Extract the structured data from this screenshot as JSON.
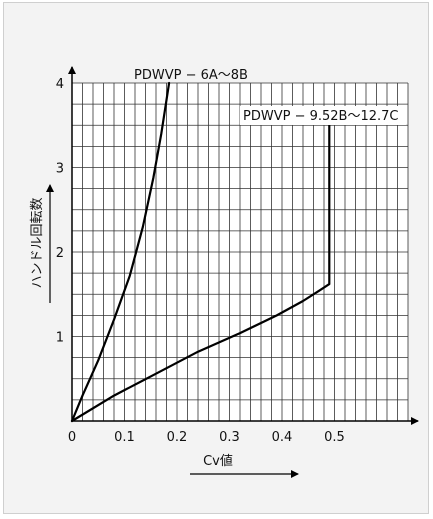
{
  "chart_data": {
    "type": "line",
    "xlabel": "Cv値",
    "ylabel": "ハンドル回転数",
    "xlim": [
      0,
      0.64
    ],
    "ylim": [
      0,
      4
    ],
    "x_ticks": [
      "0",
      "0.1",
      "0.2",
      "0.3",
      "0.4",
      "0.5"
    ],
    "y_ticks": [
      "1",
      "2",
      "3",
      "4"
    ],
    "grid": true,
    "series": [
      {
        "name": "PDWVP − 6A〜8B",
        "points": [
          [
            0,
            0
          ],
          [
            0.02,
            0.3
          ],
          [
            0.05,
            0.72
          ],
          [
            0.08,
            1.2
          ],
          [
            0.11,
            1.72
          ],
          [
            0.135,
            2.3
          ],
          [
            0.155,
            2.88
          ],
          [
            0.17,
            3.4
          ],
          [
            0.18,
            3.8
          ],
          [
            0.185,
            4.0
          ]
        ]
      },
      {
        "name": "PDWVP − 9.52B〜12.7C",
        "points": [
          [
            0,
            0
          ],
          [
            0.08,
            0.3
          ],
          [
            0.16,
            0.56
          ],
          [
            0.24,
            0.82
          ],
          [
            0.32,
            1.04
          ],
          [
            0.39,
            1.25
          ],
          [
            0.44,
            1.42
          ],
          [
            0.47,
            1.54
          ],
          [
            0.49,
            1.62
          ],
          [
            0.49,
            3.6
          ]
        ]
      }
    ]
  }
}
